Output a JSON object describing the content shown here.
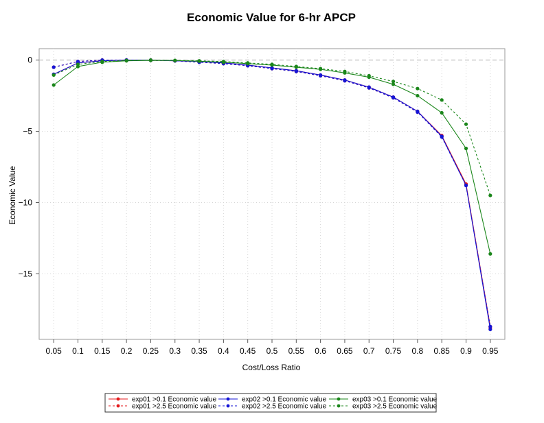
{
  "chart_data": {
    "type": "line",
    "title": "Economic Value for 6-hr APCP",
    "xlabel": "Cost/Loss Ratio",
    "ylabel": "Economic Value",
    "x": [
      0.05,
      0.1,
      0.15,
      0.2,
      0.25,
      0.3,
      0.35,
      0.4,
      0.45,
      0.5,
      0.55,
      0.6,
      0.65,
      0.7,
      0.75,
      0.8,
      0.85,
      0.9,
      0.95
    ],
    "x_tick_labels": [
      "0.05",
      "0.1",
      "0.15",
      "0.2",
      "0.25",
      "0.3",
      "0.35",
      "0.4",
      "0.45",
      "0.5",
      "0.55",
      "0.6",
      "0.65",
      "0.7",
      "0.75",
      "0.8",
      "0.85",
      "0.9",
      "0.95"
    ],
    "y_ticks": [
      0,
      -5,
      -10,
      -15
    ],
    "y_tick_labels": [
      "0",
      "−5",
      "−10",
      "−15"
    ],
    "ylim": [
      -19.6,
      0.8
    ],
    "xlim": [
      0.02,
      0.98
    ],
    "grid": true,
    "reference_line": 0,
    "legend_position": "bottom-center",
    "series": [
      {
        "name": "exp01 >0.1 Economic value",
        "color": "#e41a1c",
        "style": "solid",
        "values": [
          -1.0,
          -0.2,
          -0.05,
          0.0,
          0.0,
          -0.05,
          -0.1,
          -0.2,
          -0.35,
          -0.55,
          -0.75,
          -1.05,
          -1.4,
          -1.9,
          -2.6,
          -3.6,
          -5.3,
          -8.7,
          -18.7
        ]
      },
      {
        "name": "exp01 >2.5 Economic value",
        "color": "#e41a1c",
        "style": "dashed",
        "values": [
          -0.5,
          -0.1,
          0.0,
          0.0,
          -0.02,
          -0.05,
          -0.15,
          -0.25,
          -0.4,
          -0.6,
          -0.8,
          -1.1,
          -1.45,
          -1.95,
          -2.65,
          -3.65,
          -5.35,
          -8.75,
          -18.8
        ]
      },
      {
        "name": "exp02 >0.1 Economic value",
        "color": "#1515d6",
        "style": "solid",
        "values": [
          -1.0,
          -0.2,
          -0.05,
          0.0,
          0.0,
          -0.05,
          -0.1,
          -0.2,
          -0.35,
          -0.55,
          -0.75,
          -1.05,
          -1.4,
          -1.9,
          -2.6,
          -3.6,
          -5.35,
          -8.8,
          -18.9
        ]
      },
      {
        "name": "exp02 >2.5 Economic value",
        "color": "#1515d6",
        "style": "dashed",
        "values": [
          -0.5,
          -0.1,
          0.0,
          0.0,
          -0.02,
          -0.05,
          -0.15,
          -0.25,
          -0.4,
          -0.6,
          -0.8,
          -1.1,
          -1.45,
          -1.95,
          -2.65,
          -3.65,
          -5.4,
          -8.8,
          -18.7
        ]
      },
      {
        "name": "exp03 >0.1 Economic value",
        "color": "#1a861a",
        "style": "solid",
        "values": [
          -1.75,
          -0.45,
          -0.15,
          -0.05,
          -0.02,
          -0.03,
          -0.08,
          -0.15,
          -0.25,
          -0.35,
          -0.5,
          -0.65,
          -0.9,
          -1.2,
          -1.7,
          -2.5,
          -3.7,
          -6.2,
          -13.6
        ]
      },
      {
        "name": "exp03 >2.5 Economic value",
        "color": "#1a861a",
        "style": "dashed",
        "values": [
          -1.05,
          -0.3,
          -0.1,
          -0.02,
          0.0,
          -0.02,
          -0.05,
          -0.1,
          -0.2,
          -0.3,
          -0.45,
          -0.6,
          -0.8,
          -1.1,
          -1.5,
          -2.0,
          -2.8,
          -4.5,
          -9.5
        ]
      }
    ]
  }
}
